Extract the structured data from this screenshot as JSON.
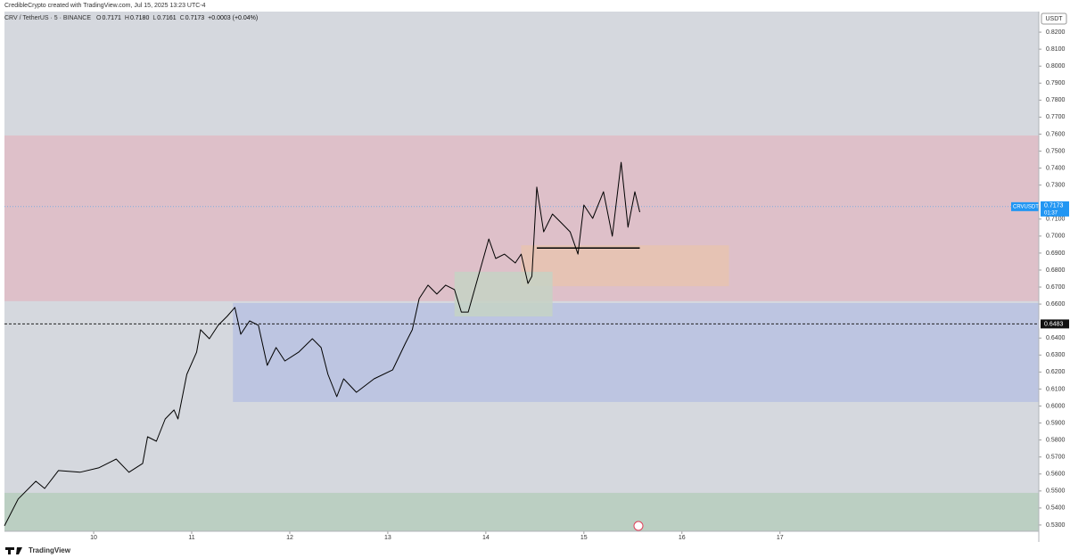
{
  "header": {
    "credit": "CredibleCrypto created with TradingView.com, Jul 15, 2025 13:23 UTC-4",
    "footer": "TradingView"
  },
  "chart_data": {
    "type": "line",
    "legend": {
      "symbol": "CRV / TetherUS · 5 · BINANCE",
      "ohlc": [
        {
          "label": "O",
          "value": "0.7171"
        },
        {
          "label": "H",
          "value": "0.7180"
        },
        {
          "label": "L",
          "value": "0.7161"
        },
        {
          "label": "C",
          "value": "0.7173"
        }
      ],
      "change": "+0.0003 (+0.04%)"
    },
    "y_unit": "USDT",
    "xlim": [
      9.09,
      19.64
    ],
    "xticks": [
      10,
      11,
      12,
      13,
      14,
      15,
      16,
      17
    ],
    "ylim": [
      0.5263,
      0.8321
    ],
    "yticks": [
      {
        "value": 0.53,
        "label": "0.5300"
      },
      {
        "value": 0.54,
        "label": "0.5400"
      },
      {
        "value": 0.55,
        "label": "0.5500"
      },
      {
        "value": 0.56,
        "label": "0.5600"
      },
      {
        "value": 0.57,
        "label": "0.5700"
      },
      {
        "value": 0.58,
        "label": "0.5800"
      },
      {
        "value": 0.59,
        "label": "0.5900"
      },
      {
        "value": 0.6,
        "label": "0.6000"
      },
      {
        "value": 0.61,
        "label": "0.6100"
      },
      {
        "value": 0.62,
        "label": "0.6200"
      },
      {
        "value": 0.63,
        "label": "0.6300"
      },
      {
        "value": 0.64,
        "label": "0.6400"
      },
      {
        "value": 0.66,
        "label": "0.6600"
      },
      {
        "value": 0.67,
        "label": "0.6700"
      },
      {
        "value": 0.68,
        "label": "0.6800"
      },
      {
        "value": 0.69,
        "label": "0.6900"
      },
      {
        "value": 0.7,
        "label": "0.7000"
      },
      {
        "value": 0.71,
        "label": "0.7100"
      },
      {
        "value": 0.73,
        "label": "0.7300"
      },
      {
        "value": 0.74,
        "label": "0.7400"
      },
      {
        "value": 0.75,
        "label": "0.7500"
      },
      {
        "value": 0.76,
        "label": "0.7600"
      },
      {
        "value": 0.77,
        "label": "0.7700"
      },
      {
        "value": 0.78,
        "label": "0.7800"
      },
      {
        "value": 0.79,
        "label": "0.7900"
      },
      {
        "value": 0.8,
        "label": "0.8000"
      },
      {
        "value": 0.81,
        "label": "0.8100"
      },
      {
        "value": 0.82,
        "label": "0.8200"
      }
    ],
    "zones": [
      {
        "x": [
          9.09,
          19.64
        ],
        "y": [
          0.6617,
          0.7592
        ],
        "color": "#dfbcc6"
      },
      {
        "x": [
          11.42,
          19.64
        ],
        "y": [
          0.6024,
          0.6606
        ],
        "color": "#b9c2e2"
      },
      {
        "x": [
          9.09,
          19.64
        ],
        "y": [
          0.5263,
          0.5489
        ],
        "color": "#b6cebd"
      },
      {
        "x": [
          14.36,
          16.48
        ],
        "y": [
          0.6705,
          0.6946
        ],
        "color": "#e7c3b0"
      },
      {
        "x": [
          13.68,
          14.68
        ],
        "y": [
          0.6527,
          0.679
        ],
        "color": "#c6d2c4"
      }
    ],
    "hline": {
      "value": 0.693,
      "x": [
        14.52,
        15.57
      ],
      "color": "#000000"
    },
    "level": {
      "value": 0.6483,
      "label": "0.6483"
    },
    "last_price": {
      "value": 0.7173,
      "label": "0.7173",
      "symbol": "CRVUSDT",
      "countdown": "01:37",
      "color": "#2196f3"
    },
    "series": [
      {
        "name": "CRVUSDT",
        "color": "#000000",
        "x": [
          9.09,
          9.23,
          9.41,
          9.5,
          9.64,
          9.86,
          10.05,
          10.23,
          10.36,
          10.5,
          10.55,
          10.64,
          10.73,
          10.82,
          10.86,
          10.95,
          11.05,
          11.09,
          11.18,
          11.27,
          11.36,
          11.44,
          11.5,
          11.59,
          11.68,
          11.77,
          11.86,
          11.95,
          12.09,
          12.23,
          12.32,
          12.39,
          12.48,
          12.55,
          12.68,
          12.86,
          13.05,
          13.18,
          13.25,
          13.32,
          13.41,
          13.5,
          13.59,
          13.68,
          13.75,
          13.82,
          13.91,
          14.03,
          14.1,
          14.19,
          14.3,
          14.36,
          14.43,
          14.47,
          14.52,
          14.59,
          14.68,
          14.77,
          14.86,
          14.94,
          15,
          15.09,
          15.2,
          15.29,
          15.38,
          15.45,
          15.52,
          15.57
        ],
        "values": [
          0.5295,
          0.5453,
          0.5557,
          0.5515,
          0.562,
          0.561,
          0.5636,
          0.5688,
          0.561,
          0.5662,
          0.5819,
          0.5793,
          0.5924,
          0.5977,
          0.5924,
          0.6186,
          0.6317,
          0.6449,
          0.6396,
          0.6475,
          0.6527,
          0.658,
          0.6422,
          0.6501,
          0.6475,
          0.6239,
          0.6344,
          0.6265,
          0.6317,
          0.6396,
          0.6344,
          0.6186,
          0.6055,
          0.616,
          0.6081,
          0.616,
          0.6213,
          0.637,
          0.6449,
          0.6632,
          0.6711,
          0.6659,
          0.6711,
          0.6685,
          0.6553,
          0.6553,
          0.6737,
          0.6983,
          0.6868,
          0.6894,
          0.6842,
          0.6894,
          0.6721,
          0.6763,
          0.7288,
          0.7025,
          0.713,
          0.7078,
          0.7025,
          0.6894,
          0.7183,
          0.7104,
          0.7261,
          0.6999,
          0.7434,
          0.7052,
          0.7261,
          0.7141
        ]
      }
    ]
  }
}
